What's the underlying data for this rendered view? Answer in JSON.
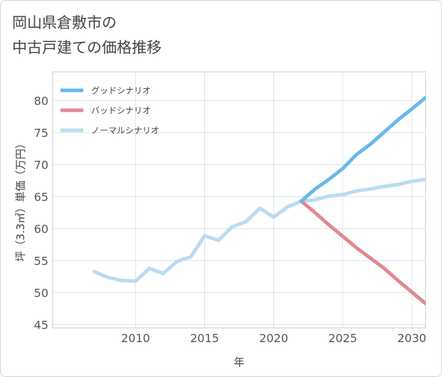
{
  "title_line1": "岡山県倉敷市の",
  "title_line2": "中古戸建ての価格推移",
  "chart_data": {
    "type": "line",
    "xlabel": "年",
    "ylabel": "坪（3.3㎡）単価（万円）",
    "xlim": [
      2004,
      2031
    ],
    "ylim": [
      44.5,
      84.5
    ],
    "x_ticks": [
      2010,
      2015,
      2020,
      2025,
      2030
    ],
    "y_ticks": [
      45,
      50,
      55,
      60,
      65,
      70,
      75,
      80
    ],
    "grid": true,
    "legend_position": "top-left",
    "series": [
      {
        "name": "グッドシナリオ",
        "color": "#6ab8ec",
        "x": [
          2022,
          2023,
          2024,
          2025,
          2026,
          2027,
          2028,
          2029,
          2030,
          2031
        ],
        "values": [
          64.3,
          66.2,
          67.7,
          69.4,
          71.6,
          73.2,
          75.1,
          77.0,
          78.7,
          80.5
        ]
      },
      {
        "name": "バッドシナリオ",
        "color": "#e08890",
        "x": [
          2022,
          2023,
          2024,
          2025,
          2026,
          2027,
          2028,
          2029,
          2030,
          2031
        ],
        "values": [
          64.3,
          62.5,
          60.6,
          58.8,
          57.0,
          55.4,
          53.8,
          51.9,
          50.1,
          48.3
        ]
      },
      {
        "name": "ノーマルシナリオ",
        "color": "#b9dcf0",
        "x": [
          2007,
          2008,
          2009,
          2010,
          2011,
          2012,
          2013,
          2014,
          2015,
          2016,
          2017,
          2018,
          2019,
          2020,
          2021,
          2022,
          2023,
          2024,
          2025,
          2026,
          2027,
          2028,
          2029,
          2030,
          2031
        ],
        "values": [
          53.3,
          52.4,
          51.9,
          51.8,
          53.8,
          53.0,
          54.9,
          55.6,
          58.9,
          58.2,
          60.3,
          61.1,
          63.2,
          61.8,
          63.4,
          64.3,
          64.5,
          65.1,
          65.3,
          65.9,
          66.2,
          66.6,
          66.9,
          67.4,
          67.7
        ]
      }
    ]
  }
}
